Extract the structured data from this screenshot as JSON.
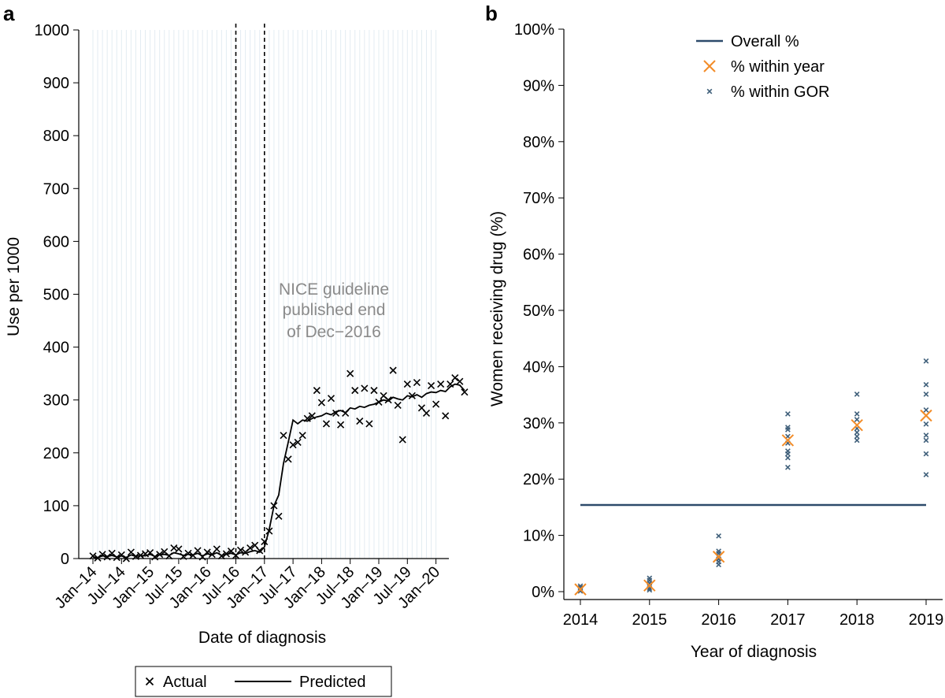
{
  "chart_data": [
    {
      "panel": "a",
      "type": "scatter",
      "ylabel": "Use per 1000",
      "xlabel": "Date of diagnosis",
      "ylim": [
        0,
        1000
      ],
      "yticks": [
        0,
        100,
        200,
        300,
        400,
        500,
        600,
        700,
        800,
        900,
        1000
      ],
      "xticks": [
        "Jan–14",
        "Jul–14",
        "Jan–15",
        "Jul–15",
        "Jan–16",
        "Jul–16",
        "Jan–17",
        "Jul–17",
        "Jan–18",
        "Jul–18",
        "Jan–19",
        "Jul–19",
        "Jan–20"
      ],
      "grid": "vertical-monthly",
      "annotation": [
        "NICE guideline",
        "published end",
        "of Dec−2016"
      ],
      "vlines": [
        "Jul–16",
        "Jan–17"
      ],
      "legend": {
        "position": "bottom",
        "entries": [
          "Actual",
          "Predicted"
        ]
      },
      "series": [
        {
          "name": "Actual",
          "x_start": "Jan–14",
          "x_step": "1 month",
          "values": [
            5,
            1,
            8,
            3,
            10,
            2,
            7,
            0,
            12,
            4,
            6,
            9,
            11,
            3,
            8,
            13,
            5,
            20,
            18,
            4,
            10,
            6,
            15,
            3,
            12,
            8,
            18,
            5,
            9,
            14,
            6,
            16,
            12,
            20,
            25,
            15,
            32,
            52,
            100,
            80,
            233,
            188,
            215,
            220,
            233,
            265,
            270,
            318,
            295,
            255,
            303,
            275,
            253,
            275,
            350,
            318,
            260,
            322,
            255,
            318,
            296,
            308,
            300,
            356,
            290,
            225,
            330,
            308,
            333,
            285,
            275,
            327,
            292,
            330,
            270,
            330,
            342,
            335,
            315
          ]
        },
        {
          "name": "Predicted",
          "x_start": "Jan–14",
          "x_step": "1 month",
          "values": [
            3,
            2,
            5,
            4,
            6,
            3,
            5,
            2,
            7,
            4,
            6,
            5,
            8,
            4,
            7,
            8,
            6,
            11,
            9,
            6,
            8,
            7,
            10,
            5,
            9,
            7,
            11,
            6,
            8,
            10,
            7,
            11,
            10,
            13,
            15,
            12,
            22,
            55,
            100,
            120,
            180,
            220,
            262,
            255,
            262,
            260,
            265,
            268,
            270,
            275,
            272,
            278,
            280,
            276,
            285,
            283,
            288,
            286,
            290,
            292,
            296,
            300,
            298,
            305,
            302,
            300,
            308,
            306,
            310,
            305,
            312,
            315,
            314,
            318,
            316,
            325,
            330,
            328,
            318
          ]
        }
      ]
    },
    {
      "panel": "b",
      "type": "scatter",
      "ylabel": "Women receiving drug (%)",
      "xlabel": "Year of diagnosis",
      "ylim": [
        0,
        100
      ],
      "yticks": [
        "0%",
        "10%",
        "20%",
        "30%",
        "40%",
        "50%",
        "60%",
        "70%",
        "80%",
        "90%",
        "100%"
      ],
      "categories": [
        "2014",
        "2015",
        "2016",
        "2017",
        "2018",
        "2019"
      ],
      "grid": false,
      "legend": {
        "position": "top-center",
        "entries": [
          "Overall %",
          "% within year",
          "% within GOR"
        ]
      },
      "series": [
        {
          "name": "Overall %",
          "type": "line",
          "value": 15.4,
          "color": "#2d4a6b"
        },
        {
          "name": "% within year",
          "values": [
            0.4,
            1.1,
            6.2,
            26.9,
            29.6,
            31.3
          ],
          "color": "#f28c28"
        },
        {
          "name": "% within GOR",
          "color": "#3f5f7a",
          "points": {
            "2014": [
              0.1,
              0.3,
              0.5,
              0.7,
              1.0
            ],
            "2015": [
              0.3,
              0.6,
              1.0,
              1.5,
              2.0,
              2.4
            ],
            "2016": [
              4.8,
              5.3,
              5.8,
              6.3,
              6.8,
              7.2,
              9.9
            ],
            "2017": [
              22.1,
              23.8,
              24.5,
              25.0,
              26.4,
              27.6,
              28.8,
              29.2,
              31.6
            ],
            "2018": [
              26.9,
              27.6,
              28.3,
              29.0,
              30.6,
              31.6,
              35.1
            ],
            "2019": [
              20.8,
              24.5,
              26.9,
              27.8,
              29.8,
              32.3,
              35.1,
              36.8,
              41.0
            ]
          }
        }
      ]
    }
  ]
}
